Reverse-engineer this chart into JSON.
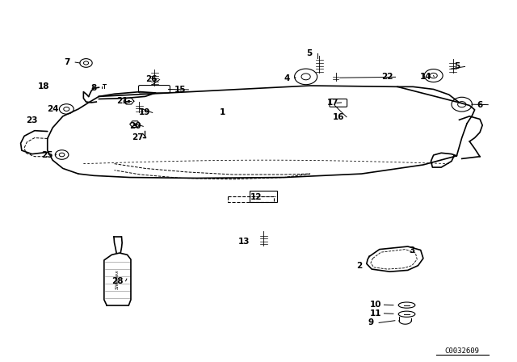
{
  "title": "",
  "bg_color": "#ffffff",
  "fig_width": 6.4,
  "fig_height": 4.48,
  "dpi": 100,
  "watermark": "C0032609"
}
